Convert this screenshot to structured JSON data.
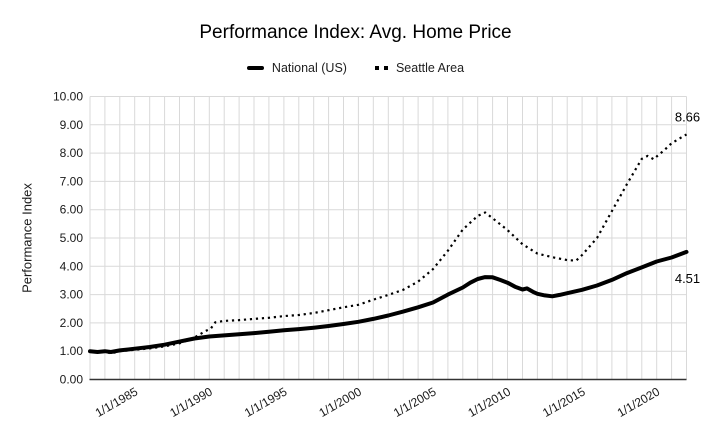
{
  "chart": {
    "title": "Performance Index: Avg. Home Price",
    "y_axis_title": "Performance Index",
    "legend": [
      {
        "label": "National (US)",
        "style": "solid"
      },
      {
        "label": "Seattle Area",
        "style": "dotted"
      }
    ],
    "colors": {
      "line": "#000000",
      "grid": "#d9d9d9",
      "axis": "#333333",
      "text": "#1a1a1a",
      "background": "#ffffff"
    }
  },
  "chart_data": {
    "type": "line",
    "title": "Performance Index: Avg. Home Price",
    "xlabel": "",
    "ylabel": "Performance Index",
    "xlim": [
      1982,
      2022
    ],
    "ylim": [
      0,
      10
    ],
    "grid": true,
    "legend_position": "top",
    "x_ticks": [
      {
        "label": "1/1/1985",
        "year": 1985
      },
      {
        "label": "1/1/1990",
        "year": 1990
      },
      {
        "label": "1/1/1995",
        "year": 1995
      },
      {
        "label": "1/1/2000",
        "year": 2000
      },
      {
        "label": "1/1/2005",
        "year": 2005
      },
      {
        "label": "1/1/2010",
        "year": 2010
      },
      {
        "label": "1/1/2015",
        "year": 2015
      },
      {
        "label": "1/1/2020",
        "year": 2020
      }
    ],
    "y_ticks": [
      {
        "value": 0,
        "label": "0.00"
      },
      {
        "value": 1,
        "label": "1.00"
      },
      {
        "value": 2,
        "label": "2.00"
      },
      {
        "value": 3,
        "label": "3.00"
      },
      {
        "value": 4,
        "label": "4.00"
      },
      {
        "value": 5,
        "label": "5.00"
      },
      {
        "value": 6,
        "label": "6.00"
      },
      {
        "value": 7,
        "label": "7.00"
      },
      {
        "value": 8,
        "label": "8.00"
      },
      {
        "value": 9,
        "label": "9.00"
      },
      {
        "value": 10,
        "label": "10.00"
      }
    ],
    "series": [
      {
        "name": "National (US)",
        "style": "solid",
        "end_label": "4.51",
        "x": [
          1982,
          1982.5,
          1983,
          1983.4,
          1984,
          1985,
          1986,
          1987,
          1988,
          1989,
          1990,
          1991,
          1992,
          1993,
          1994,
          1995,
          1996,
          1997,
          1998,
          1999,
          2000,
          2001,
          2002,
          2003,
          2004,
          2005,
          2006,
          2007,
          2007.5,
          2008,
          2008.5,
          2009,
          2009.5,
          2010,
          2010.5,
          2011,
          2011.3,
          2011.7,
          2012,
          2012.5,
          2013,
          2013.5,
          2014,
          2015,
          2016,
          2017,
          2018,
          2019,
          2020,
          2021,
          2022
        ],
        "y": [
          1.0,
          0.97,
          1.0,
          0.97,
          1.03,
          1.09,
          1.15,
          1.23,
          1.34,
          1.45,
          1.52,
          1.56,
          1.6,
          1.64,
          1.69,
          1.74,
          1.78,
          1.83,
          1.89,
          1.96,
          2.04,
          2.14,
          2.26,
          2.4,
          2.55,
          2.72,
          3.0,
          3.25,
          3.42,
          3.55,
          3.62,
          3.61,
          3.52,
          3.42,
          3.28,
          3.18,
          3.22,
          3.1,
          3.03,
          2.97,
          2.94,
          2.99,
          3.05,
          3.17,
          3.32,
          3.52,
          3.76,
          3.96,
          4.17,
          4.31,
          4.51
        ]
      },
      {
        "name": "Seattle Area",
        "style": "dotted",
        "end_label": "8.66",
        "x": [
          1982,
          1982.5,
          1983,
          1983.4,
          1984,
          1985,
          1986,
          1987,
          1988,
          1989,
          1989.7,
          1990.1,
          1990.4,
          1991,
          1992,
          1993,
          1994,
          1995,
          1996,
          1997,
          1998,
          1999,
          2000,
          2001,
          2002,
          2003,
          2004,
          2005,
          2006,
          2007,
          2008,
          2008.5,
          2009,
          2010,
          2011,
          2012,
          2013,
          2014,
          2014.6,
          2015,
          2016,
          2017,
          2018,
          2019,
          2019.4,
          2019.8,
          2020,
          2020.5,
          2021,
          2022
        ],
        "y": [
          1.0,
          0.96,
          0.99,
          0.92,
          1.0,
          1.05,
          1.1,
          1.17,
          1.28,
          1.48,
          1.7,
          1.8,
          2.02,
          2.07,
          2.1,
          2.14,
          2.18,
          2.24,
          2.28,
          2.35,
          2.45,
          2.55,
          2.64,
          2.82,
          2.99,
          3.17,
          3.46,
          3.9,
          4.55,
          5.3,
          5.78,
          5.9,
          5.7,
          5.28,
          4.78,
          4.45,
          4.32,
          4.22,
          4.2,
          4.4,
          5.0,
          5.95,
          6.9,
          7.8,
          7.9,
          7.78,
          7.88,
          8.1,
          8.35,
          8.66
        ]
      }
    ]
  }
}
